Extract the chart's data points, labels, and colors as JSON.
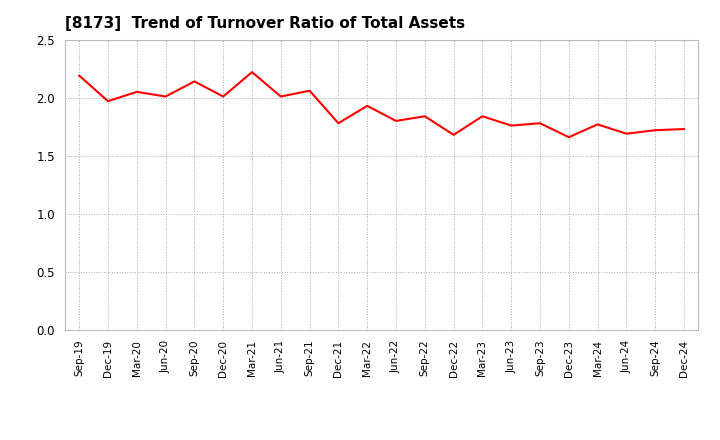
{
  "title": "[8173]  Trend of Turnover Ratio of Total Assets",
  "line_color": "#FF0000",
  "line_width": 1.5,
  "background_color": "#FFFFFF",
  "grid_color": "#AAAAAA",
  "ylim": [
    0.0,
    2.5
  ],
  "yticks": [
    0.0,
    0.5,
    1.0,
    1.5,
    2.0,
    2.5
  ],
  "labels": [
    "Sep-19",
    "Dec-19",
    "Mar-20",
    "Jun-20",
    "Sep-20",
    "Dec-20",
    "Mar-21",
    "Jun-21",
    "Sep-21",
    "Dec-21",
    "Mar-22",
    "Jun-22",
    "Sep-22",
    "Dec-22",
    "Mar-23",
    "Jun-23",
    "Sep-23",
    "Dec-23",
    "Mar-24",
    "Jun-24",
    "Sep-24",
    "Dec-24"
  ],
  "values": [
    2.19,
    1.97,
    2.05,
    2.01,
    2.14,
    2.01,
    2.22,
    2.01,
    2.06,
    1.78,
    1.93,
    1.8,
    1.84,
    1.68,
    1.84,
    1.76,
    1.78,
    1.66,
    1.77,
    1.69,
    1.72,
    1.73
  ]
}
